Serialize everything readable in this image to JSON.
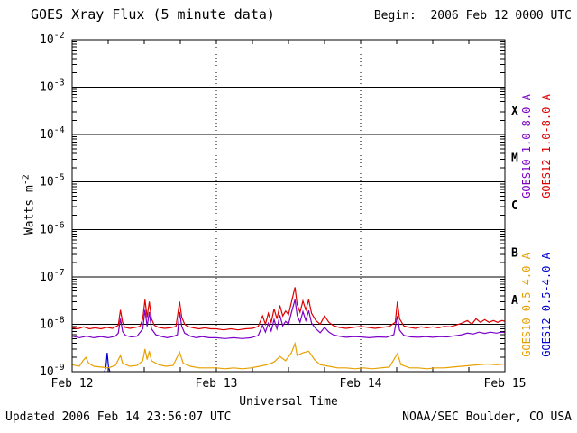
{
  "header": {
    "title": "GOES Xray Flux (5 minute data)",
    "begin_label": "Begin:  2006 Feb 12 0000 UTC"
  },
  "axes": {
    "x_label": "Universal Time",
    "y_label_base": "Watts m",
    "y_label_exponent": "-2"
  },
  "footer": {
    "updated": "Updated 2006 Feb 14 23:56:07 UTC",
    "source": "NOAA/SEC Boulder, CO USA"
  },
  "chart_data": {
    "type": "line",
    "title": "GOES Xray Flux (5 minute data)",
    "xlabel": "Universal Time",
    "ylabel": "Watts m^-2",
    "x_axis": {
      "tick_labels": [
        "Feb 12",
        "Feb 13",
        "Feb 14",
        "Feb 15"
      ],
      "tick_days": [
        0,
        1,
        2,
        3
      ],
      "range_days": [
        0,
        3
      ],
      "minor_tick_hours": 6
    },
    "y_axis": {
      "log_range": [
        -9,
        -2
      ],
      "tick_exponents": [
        -2,
        -3,
        -4,
        -5,
        -6,
        -7,
        -8,
        -9
      ]
    },
    "grid": {
      "horizontal_lines_exponents": [
        -3,
        -4,
        -5,
        -6,
        -7,
        -8
      ],
      "vertical_dotted_days": [
        1,
        2
      ]
    },
    "flare_classes": [
      {
        "label": "X",
        "log_center": -3.5
      },
      {
        "label": "M",
        "log_center": -4.5
      },
      {
        "label": "C",
        "log_center": -5.5
      },
      {
        "label": "B",
        "log_center": -6.5
      },
      {
        "label": "A",
        "log_center": -7.5
      }
    ],
    "series": [
      {
        "id": "goes12-short",
        "name": "GOES12 0.5-4.0 A",
        "color": "#0000d0",
        "label_column": 1,
        "label_group": "short",
        "points": [
          [
            0.225,
            1e-09
          ],
          [
            0.235,
            1.3e-09
          ],
          [
            0.243,
            2.5e-09
          ],
          [
            0.252,
            1.3e-09
          ],
          [
            0.262,
            1e-09
          ]
        ]
      },
      {
        "id": "goes10-short",
        "name": "GOES10 0.5-4.0 A",
        "color": "#e8a000",
        "label_column": 0,
        "label_group": "short",
        "points": [
          [
            0.0,
            1.4e-09
          ],
          [
            0.05,
            1.3e-09
          ],
          [
            0.075,
            1.7e-09
          ],
          [
            0.095,
            2e-09
          ],
          [
            0.115,
            1.5e-09
          ],
          [
            0.15,
            1.3e-09
          ],
          [
            0.2,
            1.25e-09
          ],
          [
            0.25,
            1.2e-09
          ],
          [
            0.3,
            1.35e-09
          ],
          [
            0.335,
            2.2e-09
          ],
          [
            0.35,
            1.5e-09
          ],
          [
            0.4,
            1.3e-09
          ],
          [
            0.45,
            1.35e-09
          ],
          [
            0.49,
            1.7e-09
          ],
          [
            0.505,
            3e-09
          ],
          [
            0.52,
            1.8e-09
          ],
          [
            0.535,
            2.7e-09
          ],
          [
            0.55,
            1.7e-09
          ],
          [
            0.6,
            1.4e-09
          ],
          [
            0.65,
            1.3e-09
          ],
          [
            0.7,
            1.35e-09
          ],
          [
            0.745,
            2.6e-09
          ],
          [
            0.77,
            1.5e-09
          ],
          [
            0.82,
            1.3e-09
          ],
          [
            0.88,
            1.2e-09
          ],
          [
            0.94,
            1.2e-09
          ],
          [
            1.0,
            1.2e-09
          ],
          [
            1.06,
            1.15e-09
          ],
          [
            1.12,
            1.2e-09
          ],
          [
            1.18,
            1.15e-09
          ],
          [
            1.24,
            1.2e-09
          ],
          [
            1.3,
            1.3e-09
          ],
          [
            1.35,
            1.4e-09
          ],
          [
            1.4,
            1.6e-09
          ],
          [
            1.44,
            2.1e-09
          ],
          [
            1.48,
            1.7e-09
          ],
          [
            1.52,
            2.5e-09
          ],
          [
            1.545,
            3.9e-09
          ],
          [
            1.56,
            2.2e-09
          ],
          [
            1.6,
            2.5e-09
          ],
          [
            1.64,
            2.7e-09
          ],
          [
            1.68,
            1.8e-09
          ],
          [
            1.72,
            1.4e-09
          ],
          [
            1.78,
            1.3e-09
          ],
          [
            1.84,
            1.2e-09
          ],
          [
            1.9,
            1.2e-09
          ],
          [
            1.96,
            1.15e-09
          ],
          [
            2.02,
            1.2e-09
          ],
          [
            2.08,
            1.15e-09
          ],
          [
            2.14,
            1.2e-09
          ],
          [
            2.2,
            1.25e-09
          ],
          [
            2.255,
            2.4e-09
          ],
          [
            2.28,
            1.4e-09
          ],
          [
            2.34,
            1.2e-09
          ],
          [
            2.4,
            1.2e-09
          ],
          [
            2.46,
            1.15e-09
          ],
          [
            2.52,
            1.2e-09
          ],
          [
            2.58,
            1.2e-09
          ],
          [
            2.64,
            1.25e-09
          ],
          [
            2.7,
            1.3e-09
          ],
          [
            2.76,
            1.35e-09
          ],
          [
            2.82,
            1.4e-09
          ],
          [
            2.88,
            1.45e-09
          ],
          [
            2.94,
            1.4e-09
          ],
          [
            3.0,
            1.45e-09
          ]
        ]
      },
      {
        "id": "goes10-long",
        "name": "GOES10 1.0-8.0 A",
        "color": "#7d00c8",
        "label_column": 0,
        "label_group": "long",
        "points": [
          [
            0.0,
            5.6e-09
          ],
          [
            0.05,
            5.2e-09
          ],
          [
            0.1,
            5.6e-09
          ],
          [
            0.15,
            5.2e-09
          ],
          [
            0.2,
            5.5e-09
          ],
          [
            0.25,
            5.2e-09
          ],
          [
            0.3,
            5.6e-09
          ],
          [
            0.32,
            6.5e-09
          ],
          [
            0.335,
            1.3e-08
          ],
          [
            0.35,
            7e-09
          ],
          [
            0.37,
            5.8e-09
          ],
          [
            0.41,
            5.4e-09
          ],
          [
            0.45,
            5.6e-09
          ],
          [
            0.49,
            8e-09
          ],
          [
            0.505,
            2e-08
          ],
          [
            0.52,
            9e-09
          ],
          [
            0.535,
            1.8e-08
          ],
          [
            0.55,
            8e-09
          ],
          [
            0.58,
            6e-09
          ],
          [
            0.62,
            5.5e-09
          ],
          [
            0.66,
            5.2e-09
          ],
          [
            0.7,
            5.5e-09
          ],
          [
            0.73,
            6e-09
          ],
          [
            0.745,
            1.8e-08
          ],
          [
            0.76,
            9e-09
          ],
          [
            0.78,
            6.5e-09
          ],
          [
            0.82,
            5.6e-09
          ],
          [
            0.86,
            5.2e-09
          ],
          [
            0.9,
            5.5e-09
          ],
          [
            0.95,
            5.2e-09
          ],
          [
            1.0,
            5.2e-09
          ],
          [
            1.06,
            5e-09
          ],
          [
            1.12,
            5.2e-09
          ],
          [
            1.18,
            5e-09
          ],
          [
            1.24,
            5.2e-09
          ],
          [
            1.29,
            5.8e-09
          ],
          [
            1.32,
            9.5e-09
          ],
          [
            1.34,
            6.8e-09
          ],
          [
            1.36,
            1.05e-08
          ],
          [
            1.38,
            7.2e-09
          ],
          [
            1.4,
            1.25e-08
          ],
          [
            1.42,
            8e-09
          ],
          [
            1.44,
            1.55e-08
          ],
          [
            1.46,
            9.2e-09
          ],
          [
            1.48,
            1.15e-08
          ],
          [
            1.5,
            1e-08
          ],
          [
            1.52,
            1.75e-08
          ],
          [
            1.545,
            3.3e-08
          ],
          [
            1.56,
            1.55e-08
          ],
          [
            1.58,
            1.1e-08
          ],
          [
            1.6,
            1.85e-08
          ],
          [
            1.62,
            1.2e-08
          ],
          [
            1.64,
            1.95e-08
          ],
          [
            1.66,
            1.05e-08
          ],
          [
            1.69,
            8e-09
          ],
          [
            1.72,
            6.6e-09
          ],
          [
            1.75,
            8.6e-09
          ],
          [
            1.78,
            6.8e-09
          ],
          [
            1.81,
            6e-09
          ],
          [
            1.85,
            5.6e-09
          ],
          [
            1.9,
            5.3e-09
          ],
          [
            1.95,
            5.5e-09
          ],
          [
            2.0,
            5.4e-09
          ],
          [
            2.06,
            5.2e-09
          ],
          [
            2.12,
            5.4e-09
          ],
          [
            2.18,
            5.3e-09
          ],
          [
            2.23,
            6e-09
          ],
          [
            2.255,
            1.5e-08
          ],
          [
            2.27,
            7.5e-09
          ],
          [
            2.3,
            5.8e-09
          ],
          [
            2.35,
            5.4e-09
          ],
          [
            2.4,
            5.3e-09
          ],
          [
            2.45,
            5.5e-09
          ],
          [
            2.5,
            5.3e-09
          ],
          [
            2.55,
            5.5e-09
          ],
          [
            2.6,
            5.4e-09
          ],
          [
            2.65,
            5.7e-09
          ],
          [
            2.7,
            6e-09
          ],
          [
            2.74,
            6.5e-09
          ],
          [
            2.78,
            6.2e-09
          ],
          [
            2.82,
            6.8e-09
          ],
          [
            2.86,
            6.4e-09
          ],
          [
            2.9,
            6.8e-09
          ],
          [
            2.94,
            6.5e-09
          ],
          [
            2.98,
            6.8e-09
          ],
          [
            3.0,
            6.7e-09
          ]
        ]
      },
      {
        "id": "goes12-long",
        "name": "GOES12 1.0-8.0 A",
        "color": "#dd0000",
        "label_column": 1,
        "label_group": "long",
        "points": [
          [
            0.0,
            8.5e-09
          ],
          [
            0.04,
            8e-09
          ],
          [
            0.08,
            8.8e-09
          ],
          [
            0.12,
            8e-09
          ],
          [
            0.16,
            8.4e-09
          ],
          [
            0.2,
            8e-09
          ],
          [
            0.24,
            8.6e-09
          ],
          [
            0.28,
            8.2e-09
          ],
          [
            0.32,
            9.5e-09
          ],
          [
            0.335,
            2e-08
          ],
          [
            0.35,
            1.1e-08
          ],
          [
            0.365,
            8.6e-09
          ],
          [
            0.4,
            8.2e-09
          ],
          [
            0.44,
            8.6e-09
          ],
          [
            0.47,
            9e-09
          ],
          [
            0.49,
            1.3e-08
          ],
          [
            0.505,
            3.3e-08
          ],
          [
            0.52,
            1.4e-08
          ],
          [
            0.535,
            3e-08
          ],
          [
            0.55,
            1.3e-08
          ],
          [
            0.57,
            9.5e-09
          ],
          [
            0.6,
            8.6e-09
          ],
          [
            0.64,
            8.2e-09
          ],
          [
            0.68,
            8.4e-09
          ],
          [
            0.72,
            9e-09
          ],
          [
            0.745,
            3e-08
          ],
          [
            0.76,
            1.4e-08
          ],
          [
            0.78,
            1e-08
          ],
          [
            0.8,
            9e-09
          ],
          [
            0.84,
            8.4e-09
          ],
          [
            0.88,
            8e-09
          ],
          [
            0.92,
            8.4e-09
          ],
          [
            0.96,
            8e-09
          ],
          [
            1.0,
            8e-09
          ],
          [
            1.05,
            7.6e-09
          ],
          [
            1.1,
            8e-09
          ],
          [
            1.15,
            7.6e-09
          ],
          [
            1.2,
            8e-09
          ],
          [
            1.25,
            8.2e-09
          ],
          [
            1.29,
            9e-09
          ],
          [
            1.32,
            1.5e-08
          ],
          [
            1.34,
            1e-08
          ],
          [
            1.36,
            1.7e-08
          ],
          [
            1.38,
            1.1e-08
          ],
          [
            1.4,
            2.1e-08
          ],
          [
            1.42,
            1.3e-08
          ],
          [
            1.44,
            2.5e-08
          ],
          [
            1.46,
            1.5e-08
          ],
          [
            1.48,
            1.9e-08
          ],
          [
            1.5,
            1.6e-08
          ],
          [
            1.52,
            2.9e-08
          ],
          [
            1.545,
            6e-08
          ],
          [
            1.56,
            2.6e-08
          ],
          [
            1.58,
            1.8e-08
          ],
          [
            1.6,
            3.1e-08
          ],
          [
            1.62,
            2e-08
          ],
          [
            1.64,
            3.3e-08
          ],
          [
            1.66,
            1.7e-08
          ],
          [
            1.69,
            1.2e-08
          ],
          [
            1.72,
            1e-08
          ],
          [
            1.75,
            1.5e-08
          ],
          [
            1.78,
            1.1e-08
          ],
          [
            1.81,
            9.4e-09
          ],
          [
            1.85,
            8.6e-09
          ],
          [
            1.9,
            8.2e-09
          ],
          [
            1.95,
            8.6e-09
          ],
          [
            2.0,
            9e-09
          ],
          [
            2.05,
            8.6e-09
          ],
          [
            2.1,
            8.2e-09
          ],
          [
            2.15,
            8.6e-09
          ],
          [
            2.2,
            9e-09
          ],
          [
            2.24,
            1.1e-08
          ],
          [
            2.255,
            3e-08
          ],
          [
            2.27,
            1.3e-08
          ],
          [
            2.3,
            9.2e-09
          ],
          [
            2.34,
            8.6e-09
          ],
          [
            2.38,
            8.2e-09
          ],
          [
            2.42,
            8.8e-09
          ],
          [
            2.46,
            8.4e-09
          ],
          [
            2.5,
            8.8e-09
          ],
          [
            2.54,
            8.4e-09
          ],
          [
            2.58,
            9e-09
          ],
          [
            2.62,
            8.8e-09
          ],
          [
            2.66,
            9.6e-09
          ],
          [
            2.7,
            1.05e-08
          ],
          [
            2.74,
            1.2e-08
          ],
          [
            2.77,
            1e-08
          ],
          [
            2.8,
            1.3e-08
          ],
          [
            2.83,
            1.1e-08
          ],
          [
            2.86,
            1.25e-08
          ],
          [
            2.89,
            1.1e-08
          ],
          [
            2.92,
            1.2e-08
          ],
          [
            2.95,
            1.1e-08
          ],
          [
            2.98,
            1.2e-08
          ],
          [
            3.0,
            1.15e-08
          ]
        ]
      }
    ]
  }
}
